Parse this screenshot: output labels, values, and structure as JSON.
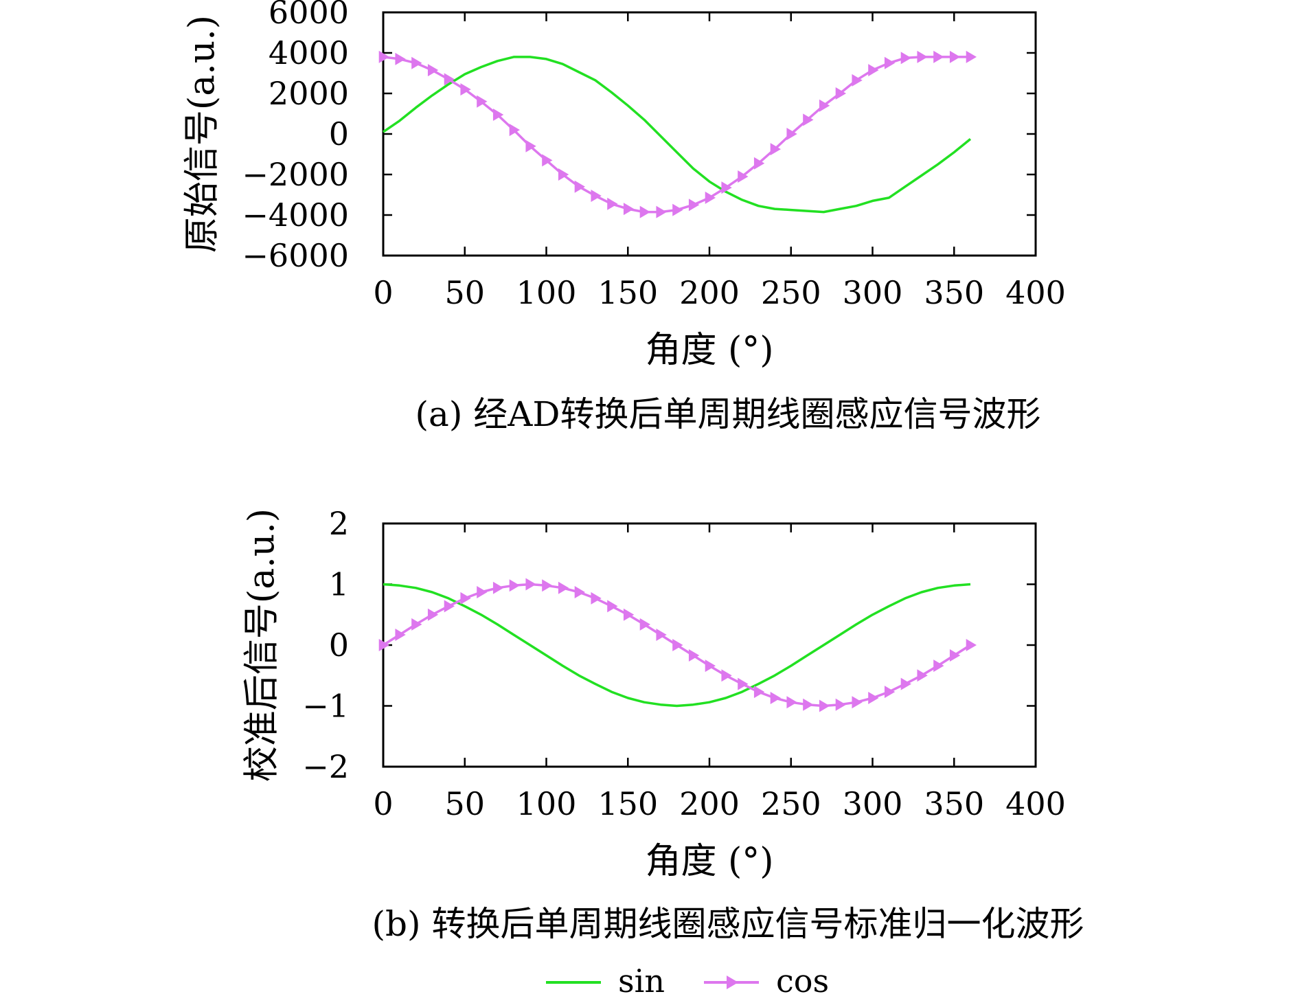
{
  "legend": {
    "placement": "bottom-center",
    "entries": [
      {
        "name": "sin",
        "color": "#22e022",
        "marker": "none"
      },
      {
        "name": "cos",
        "color": "#dd77ee",
        "marker": "right-triangle"
      }
    ]
  },
  "chart_data": [
    {
      "type": "line",
      "caption": "(a) 经AD转换后单周期线圈感应信号波形",
      "xlabel": "角度 (°)",
      "ylabel": "原始信号(a.u.)",
      "xlim": [
        0,
        400
      ],
      "ylim": [
        -6000,
        6000
      ],
      "xticks": [
        "0",
        "50",
        "100",
        "150",
        "200",
        "250",
        "300",
        "350",
        "400"
      ],
      "yticks": [
        "6000",
        "4000",
        "2000",
        "0",
        "−2000",
        "−4000",
        "−6000"
      ],
      "grid": false,
      "x": [
        0,
        10,
        20,
        30,
        40,
        50,
        60,
        70,
        80,
        90,
        100,
        110,
        120,
        130,
        140,
        150,
        160,
        170,
        180,
        190,
        200,
        210,
        220,
        230,
        240,
        250,
        260,
        270,
        280,
        290,
        300,
        310,
        320,
        330,
        340,
        350,
        360
      ],
      "series": [
        {
          "name": "sin",
          "values": [
            100,
            650,
            1300,
            1900,
            2450,
            2950,
            3300,
            3600,
            3800,
            3800,
            3700,
            3450,
            3050,
            2650,
            2050,
            1400,
            700,
            -100,
            -900,
            -1700,
            -2350,
            -2850,
            -3250,
            -3550,
            -3700,
            -3750,
            -3800,
            -3850,
            -3700,
            -3550,
            -3300,
            -3150,
            -2600,
            -2050,
            -1500,
            -900,
            -250
          ]
        },
        {
          "name": "cos",
          "values": [
            3800,
            3700,
            3500,
            3150,
            2700,
            2200,
            1600,
            950,
            200,
            -600,
            -1300,
            -2000,
            -2600,
            -3050,
            -3450,
            -3700,
            -3850,
            -3850,
            -3750,
            -3500,
            -3150,
            -2650,
            -2100,
            -1450,
            -750,
            0,
            700,
            1400,
            2000,
            2650,
            3150,
            3500,
            3750,
            3800,
            3800,
            3800,
            3800
          ]
        }
      ]
    },
    {
      "type": "line",
      "caption": "(b) 转换后单周期线圈感应信号标准归一化波形",
      "xlabel": "角度 (°)",
      "ylabel": "校准后信号(a.u.)",
      "xlim": [
        0,
        400
      ],
      "ylim": [
        -2,
        2
      ],
      "xticks": [
        "0",
        "50",
        "100",
        "150",
        "200",
        "250",
        "300",
        "350",
        "400"
      ],
      "yticks": [
        "2",
        "1",
        "0",
        "−1",
        "−2"
      ],
      "grid": false,
      "x": [
        0,
        10,
        20,
        30,
        40,
        50,
        60,
        70,
        80,
        90,
        100,
        110,
        120,
        130,
        140,
        150,
        160,
        170,
        180,
        190,
        200,
        210,
        220,
        230,
        240,
        250,
        260,
        270,
        280,
        290,
        300,
        310,
        320,
        330,
        340,
        350,
        360
      ],
      "series": [
        {
          "name": "sin",
          "values": [
            1.0,
            0.98,
            0.94,
            0.87,
            0.77,
            0.64,
            0.5,
            0.34,
            0.17,
            0.0,
            -0.17,
            -0.34,
            -0.5,
            -0.64,
            -0.77,
            -0.87,
            -0.94,
            -0.98,
            -1.0,
            -0.98,
            -0.94,
            -0.87,
            -0.77,
            -0.64,
            -0.5,
            -0.34,
            -0.17,
            0.0,
            0.17,
            0.34,
            0.5,
            0.64,
            0.77,
            0.87,
            0.94,
            0.98,
            1.0
          ]
        },
        {
          "name": "cos",
          "values": [
            0.0,
            0.17,
            0.34,
            0.5,
            0.64,
            0.77,
            0.87,
            0.94,
            0.98,
            1.0,
            0.98,
            0.94,
            0.87,
            0.77,
            0.64,
            0.5,
            0.34,
            0.17,
            0.0,
            -0.17,
            -0.34,
            -0.5,
            -0.64,
            -0.77,
            -0.87,
            -0.94,
            -0.98,
            -1.0,
            -0.98,
            -0.94,
            -0.87,
            -0.77,
            -0.64,
            -0.5,
            -0.34,
            -0.17,
            0.0
          ]
        }
      ]
    }
  ]
}
